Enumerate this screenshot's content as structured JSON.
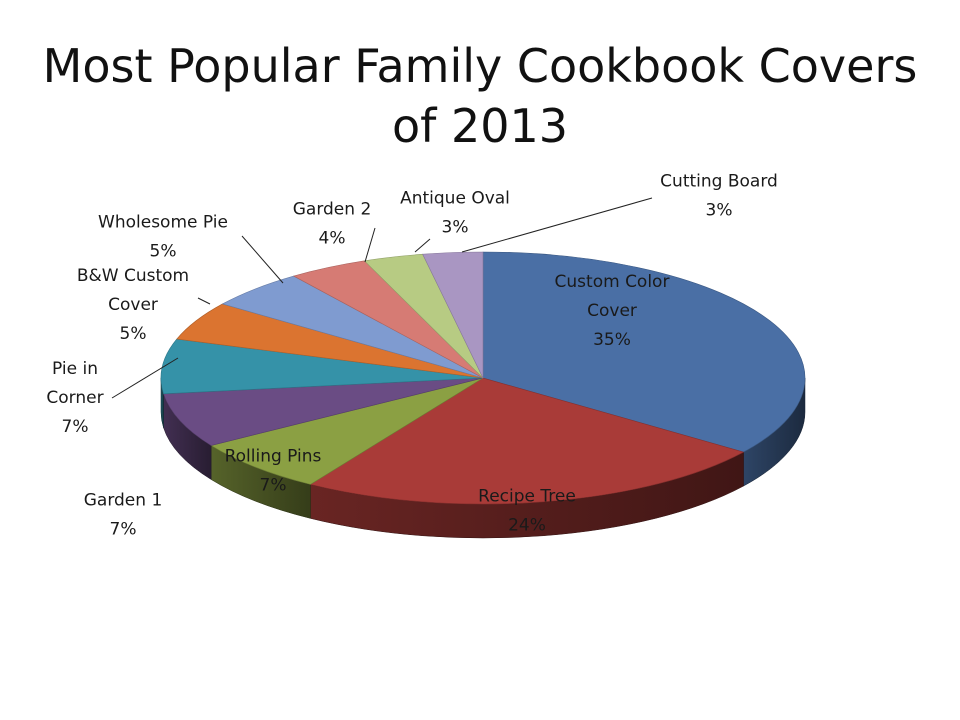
{
  "chart_data": {
    "type": "pie",
    "title": "Most Popular Family Cookbook Covers of 2013",
    "three_d": true,
    "legend": "none",
    "slices": [
      {
        "label_lines": [
          "Custom Color",
          "Cover"
        ],
        "value": 35,
        "percent_label": "35%",
        "color": "#4a6fa5"
      },
      {
        "label_lines": [
          "Recipe Tree"
        ],
        "value": 24,
        "percent_label": "24%",
        "color": "#a93b38"
      },
      {
        "label_lines": [
          "Rolling Pins"
        ],
        "value": 7,
        "percent_label": "7%",
        "color": "#8ba043"
      },
      {
        "label_lines": [
          "Garden 1"
        ],
        "value": 7,
        "percent_label": "7%",
        "color": "#6a4c84"
      },
      {
        "label_lines": [
          "Pie in",
          "Corner"
        ],
        "value": 7,
        "percent_label": "7%",
        "color": "#3592a8"
      },
      {
        "label_lines": [
          "B&W Custom",
          "Cover"
        ],
        "value": 5,
        "percent_label": "5%",
        "color": "#db7430"
      },
      {
        "label_lines": [
          "Wholesome Pie"
        ],
        "value": 5,
        "percent_label": "5%",
        "color": "#7f9bd0"
      },
      {
        "label_lines": [
          "Garden 2"
        ],
        "value": 4,
        "percent_label": "4%",
        "color": "#d67b74"
      },
      {
        "label_lines": [
          "Antique Oval"
        ],
        "value": 3,
        "percent_label": "3%",
        "color": "#b7cb83"
      },
      {
        "label_lines": [
          "Cutting Board"
        ],
        "value": 3,
        "percent_label": "3%",
        "color": "#a996c2"
      }
    ]
  }
}
